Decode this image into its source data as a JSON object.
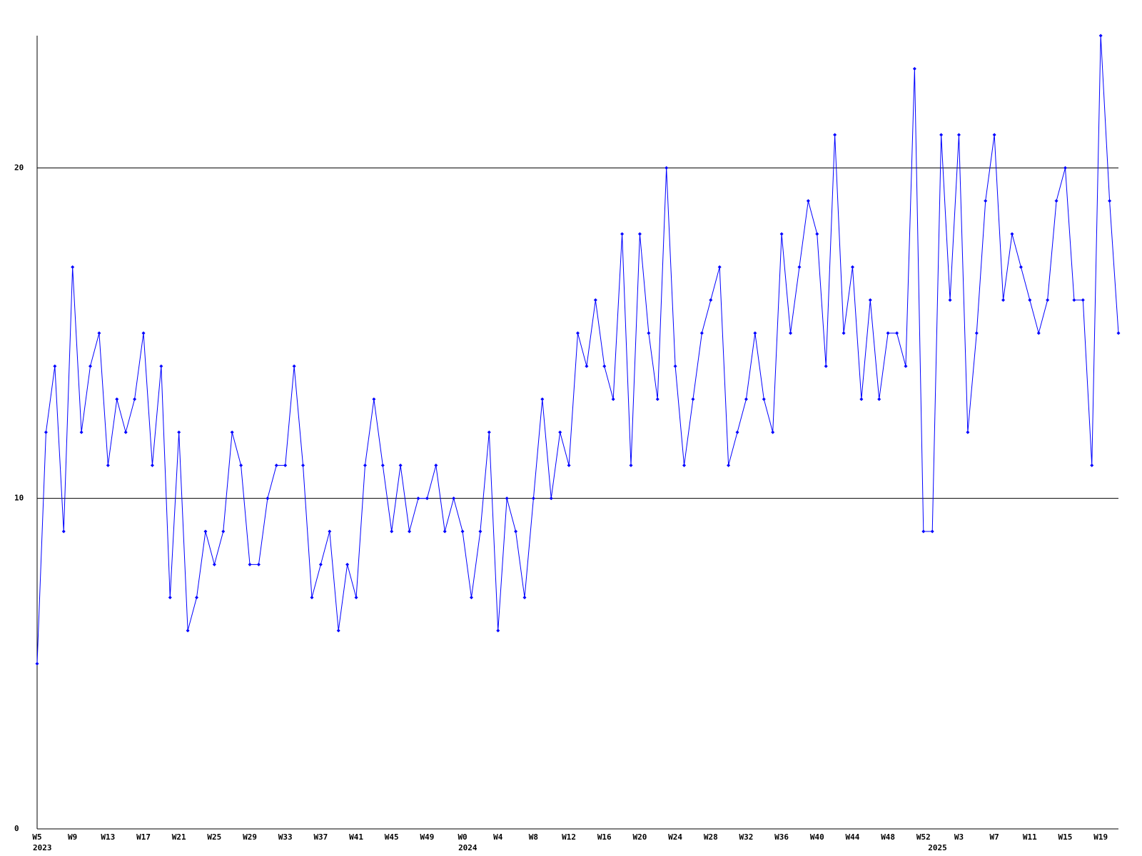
{
  "chart_data": {
    "type": "line",
    "categories": [
      "W5",
      null,
      null,
      null,
      "W9",
      null,
      null,
      null,
      "W13",
      null,
      null,
      null,
      "W17",
      null,
      null,
      null,
      "W21",
      null,
      null,
      null,
      "W25",
      null,
      null,
      null,
      "W29",
      null,
      null,
      null,
      "W33",
      null,
      null,
      null,
      "W37",
      null,
      null,
      null,
      "W41",
      null,
      null,
      null,
      "W45",
      null,
      null,
      null,
      "W49",
      null,
      null,
      null,
      "W0",
      null,
      null,
      null,
      "W4",
      null,
      null,
      null,
      "W8",
      null,
      null,
      null,
      "W12",
      null,
      null,
      null,
      "W16",
      null,
      null,
      null,
      "W20",
      null,
      null,
      null,
      "W24",
      null,
      null,
      null,
      "W28",
      null,
      null,
      null,
      "W32",
      null,
      null,
      null,
      "W36",
      null,
      null,
      null,
      "W40",
      null,
      null,
      null,
      "W44",
      null,
      null,
      null,
      "W48",
      null,
      null,
      null,
      "W52",
      null,
      null,
      null,
      "W3",
      null,
      null,
      null,
      "W7",
      null,
      null,
      null,
      "W11",
      null,
      null,
      null,
      "W15",
      null,
      null,
      null,
      "W19",
      null,
      null
    ],
    "category_years": [
      "2023",
      null,
      null,
      null,
      null,
      null,
      null,
      null,
      null,
      null,
      null,
      null,
      null,
      null,
      null,
      null,
      null,
      null,
      null,
      null,
      null,
      null,
      null,
      null,
      null,
      null,
      null,
      null,
      null,
      null,
      null,
      null,
      null,
      null,
      null,
      null,
      null,
      null,
      null,
      null,
      null,
      null,
      null,
      null,
      null,
      null,
      null,
      null,
      "2024",
      null,
      null,
      null,
      null,
      null,
      null,
      null,
      null,
      null,
      null,
      null,
      null,
      null,
      null,
      null,
      null,
      null,
      null,
      null,
      null,
      null,
      null,
      null,
      null,
      null,
      null,
      null,
      null,
      null,
      null,
      null,
      null,
      null,
      null,
      null,
      null,
      null,
      null,
      null,
      null,
      null,
      null,
      null,
      null,
      null,
      null,
      null,
      null,
      null,
      null,
      null,
      null,
      "2025",
      null,
      null,
      null,
      null,
      null,
      null,
      null,
      null,
      null,
      null,
      null,
      null,
      null,
      null,
      null,
      null,
      null,
      null,
      null,
      null
    ],
    "values": [
      5,
      12,
      14,
      9,
      17,
      12,
      14,
      15,
      11,
      13,
      12,
      13,
      15,
      11,
      14,
      7,
      12,
      6,
      7,
      9,
      8,
      9,
      12,
      11,
      8,
      8,
      10,
      11,
      11,
      14,
      11,
      7,
      8,
      9,
      6,
      8,
      7,
      11,
      13,
      11,
      9,
      11,
      9,
      10,
      10,
      11,
      9,
      10,
      9,
      7,
      9,
      12,
      6,
      10,
      9,
      7,
      10,
      13,
      10,
      12,
      11,
      15,
      14,
      16,
      14,
      13,
      18,
      11,
      18,
      15,
      13,
      20,
      14,
      11,
      13,
      15,
      16,
      17,
      11,
      12,
      13,
      15,
      13,
      12,
      18,
      15,
      17,
      19,
      18,
      14,
      21,
      15,
      17,
      13,
      16,
      13,
      15,
      15,
      14,
      23,
      9,
      9,
      21,
      16,
      21,
      12,
      15,
      19,
      21,
      16,
      18,
      17,
      16,
      15,
      16,
      19,
      20,
      16,
      16,
      11,
      24,
      19,
      15
    ],
    "color": "#0000ff",
    "ylim": [
      0,
      24
    ],
    "yticks": [
      0,
      10,
      20
    ],
    "grid": true
  }
}
